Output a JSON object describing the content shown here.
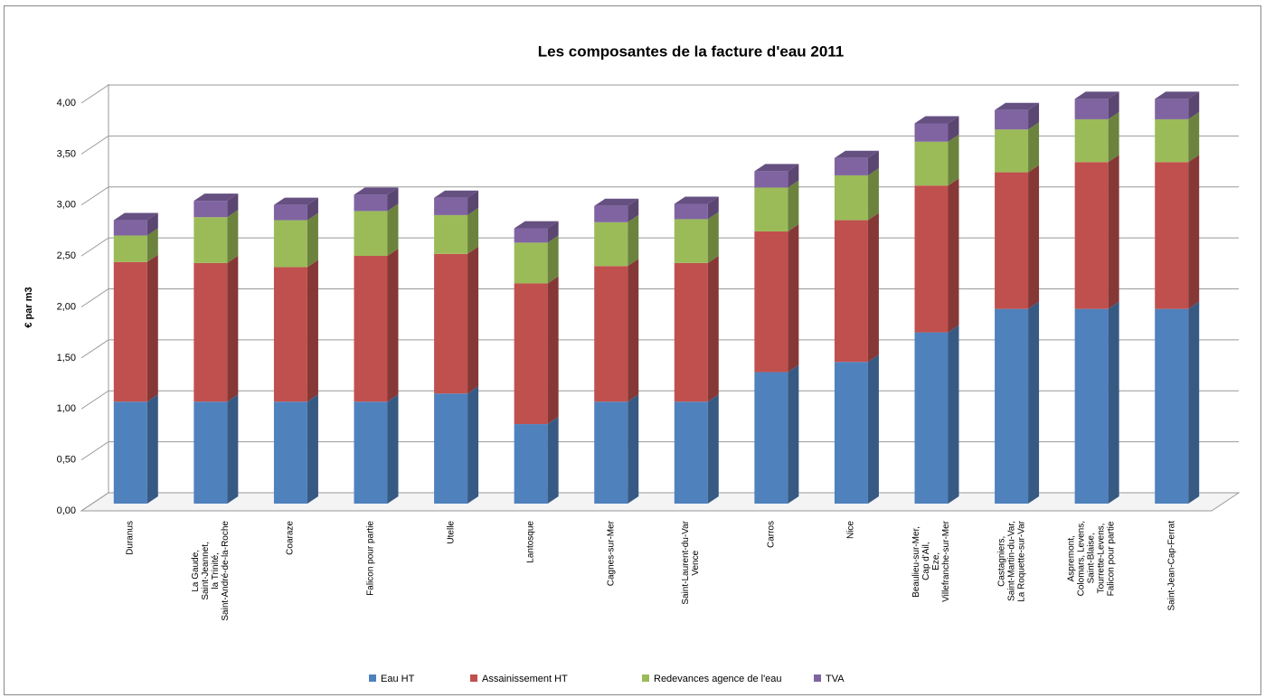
{
  "chart_data": {
    "type": "bar",
    "stacked": true,
    "three_d": true,
    "title": "Les composantes de la facture d'eau 2011",
    "ylabel": "€ par m3",
    "categories": [
      "Duranus",
      "La Gaude,\nSaint-Jeannet,\nla Trinité,\nSaint-André-de-la-Roche",
      "Coaraze",
      "Falicon pour partie",
      "Utelle",
      "Lantosque",
      "Cagnes-sur-Mer",
      "Saint-Laurent-du-Var\nVence",
      "Carros",
      "Nice",
      "Beaulieu-sur-Mer,\nCap d'Ail,\nEze,\nVillefranche-sur-Mer",
      "Castagniers,\nSaint-Martin-du-Var,\nLa Roquette-sur-Var",
      "Aspremont,\nColomars, Levens,\nSaint-Blaise,\nTourrette-Levens,\nFalicon pour partie",
      "Saint-Jean-Cap-Ferrat"
    ],
    "series": [
      {
        "name": "Eau HT",
        "color": "#4f81bd",
        "values": [
          1.0,
          1.0,
          1.0,
          1.0,
          1.08,
          0.78,
          1.0,
          1.0,
          1.29,
          1.39,
          1.68,
          1.91,
          1.91,
          1.91
        ]
      },
      {
        "name": "Assainissement HT",
        "color": "#c0504d",
        "values": [
          1.37,
          1.36,
          1.32,
          1.43,
          1.37,
          1.38,
          1.33,
          1.36,
          1.38,
          1.39,
          1.44,
          1.34,
          1.44,
          1.44
        ]
      },
      {
        "name": "Redevances agence de l'eau",
        "color": "#9bbb59",
        "values": [
          0.26,
          0.45,
          0.46,
          0.44,
          0.38,
          0.4,
          0.43,
          0.43,
          0.43,
          0.44,
          0.43,
          0.42,
          0.42,
          0.42
        ]
      },
      {
        "name": "TVA",
        "color": "#8064a2",
        "values": [
          0.15,
          0.16,
          0.15,
          0.16,
          0.17,
          0.14,
          0.16,
          0.15,
          0.16,
          0.17,
          0.18,
          0.19,
          0.2,
          0.2
        ]
      }
    ],
    "ylim": [
      0,
      4
    ],
    "yticks": [
      {
        "value": 0,
        "label": "0,00"
      },
      {
        "value": 0.5,
        "label": "0,50"
      },
      {
        "value": 1,
        "label": "1,00"
      },
      {
        "value": 1.5,
        "label": "1,50"
      },
      {
        "value": 2,
        "label": "2,00"
      },
      {
        "value": 2.5,
        "label": "2,50"
      },
      {
        "value": 3,
        "label": "3,00"
      },
      {
        "value": 3.5,
        "label": "3,50"
      },
      {
        "value": 4,
        "label": "4,00"
      }
    ],
    "grid": true,
    "legend": "bottom"
  }
}
